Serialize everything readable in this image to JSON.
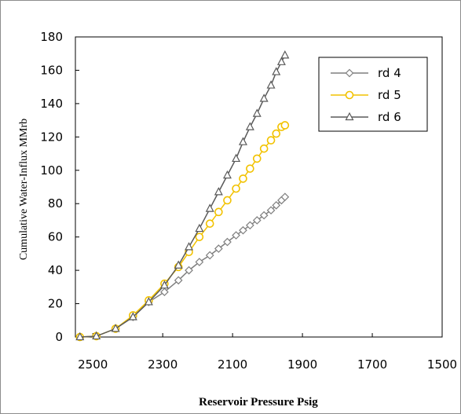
{
  "chart_data": {
    "type": "line",
    "title": "",
    "xlabel": "Reservoir Pressure Psig",
    "ylabel": "Cumulative Water-Influx MMrb",
    "xlim": [
      2550,
      1500
    ],
    "ylim": [
      0,
      180
    ],
    "x_reversed": true,
    "x_ticks": [
      2500,
      2300,
      2100,
      1900,
      1700,
      1500
    ],
    "y_ticks": [
      0,
      20,
      40,
      60,
      80,
      100,
      120,
      140,
      160,
      180
    ],
    "grid": false,
    "legend_position": "top-right",
    "series": [
      {
        "name": "rd 4",
        "color": "#7f7f7f",
        "marker": "diamond",
        "x": [
          2537,
          2490,
          2435,
          2385,
          2340,
          2295,
          2255,
          2225,
          2195,
          2165,
          2140,
          2115,
          2090,
          2070,
          2050,
          2030,
          2010,
          1990,
          1975,
          1960,
          1950
        ],
        "y": [
          0,
          0.5,
          5,
          12,
          21,
          27,
          34,
          40,
          45,
          49,
          53,
          57,
          61,
          64,
          67,
          70,
          73,
          76,
          79,
          82,
          84
        ]
      },
      {
        "name": "rd 5",
        "color": "#f2c200",
        "marker": "circle",
        "x": [
          2537,
          2490,
          2435,
          2385,
          2340,
          2295,
          2255,
          2225,
          2195,
          2165,
          2140,
          2115,
          2090,
          2070,
          2050,
          2030,
          2010,
          1990,
          1975,
          1960,
          1950
        ],
        "y": [
          0,
          0.5,
          5,
          13,
          22,
          32,
          42,
          51,
          60,
          68,
          75,
          82,
          89,
          95,
          101,
          107,
          113,
          118,
          122,
          126,
          127
        ]
      },
      {
        "name": "rd 6",
        "color": "#595959",
        "marker": "triangle",
        "x": [
          2537,
          2490,
          2435,
          2385,
          2340,
          2295,
          2255,
          2225,
          2195,
          2165,
          2140,
          2115,
          2090,
          2070,
          2050,
          2030,
          2010,
          1990,
          1975,
          1960,
          1950
        ],
        "y": [
          0,
          0.5,
          5,
          12,
          21,
          31,
          43,
          54,
          65,
          77,
          87,
          97,
          107,
          117,
          126,
          134,
          143,
          151,
          159,
          165,
          169
        ]
      }
    ]
  }
}
